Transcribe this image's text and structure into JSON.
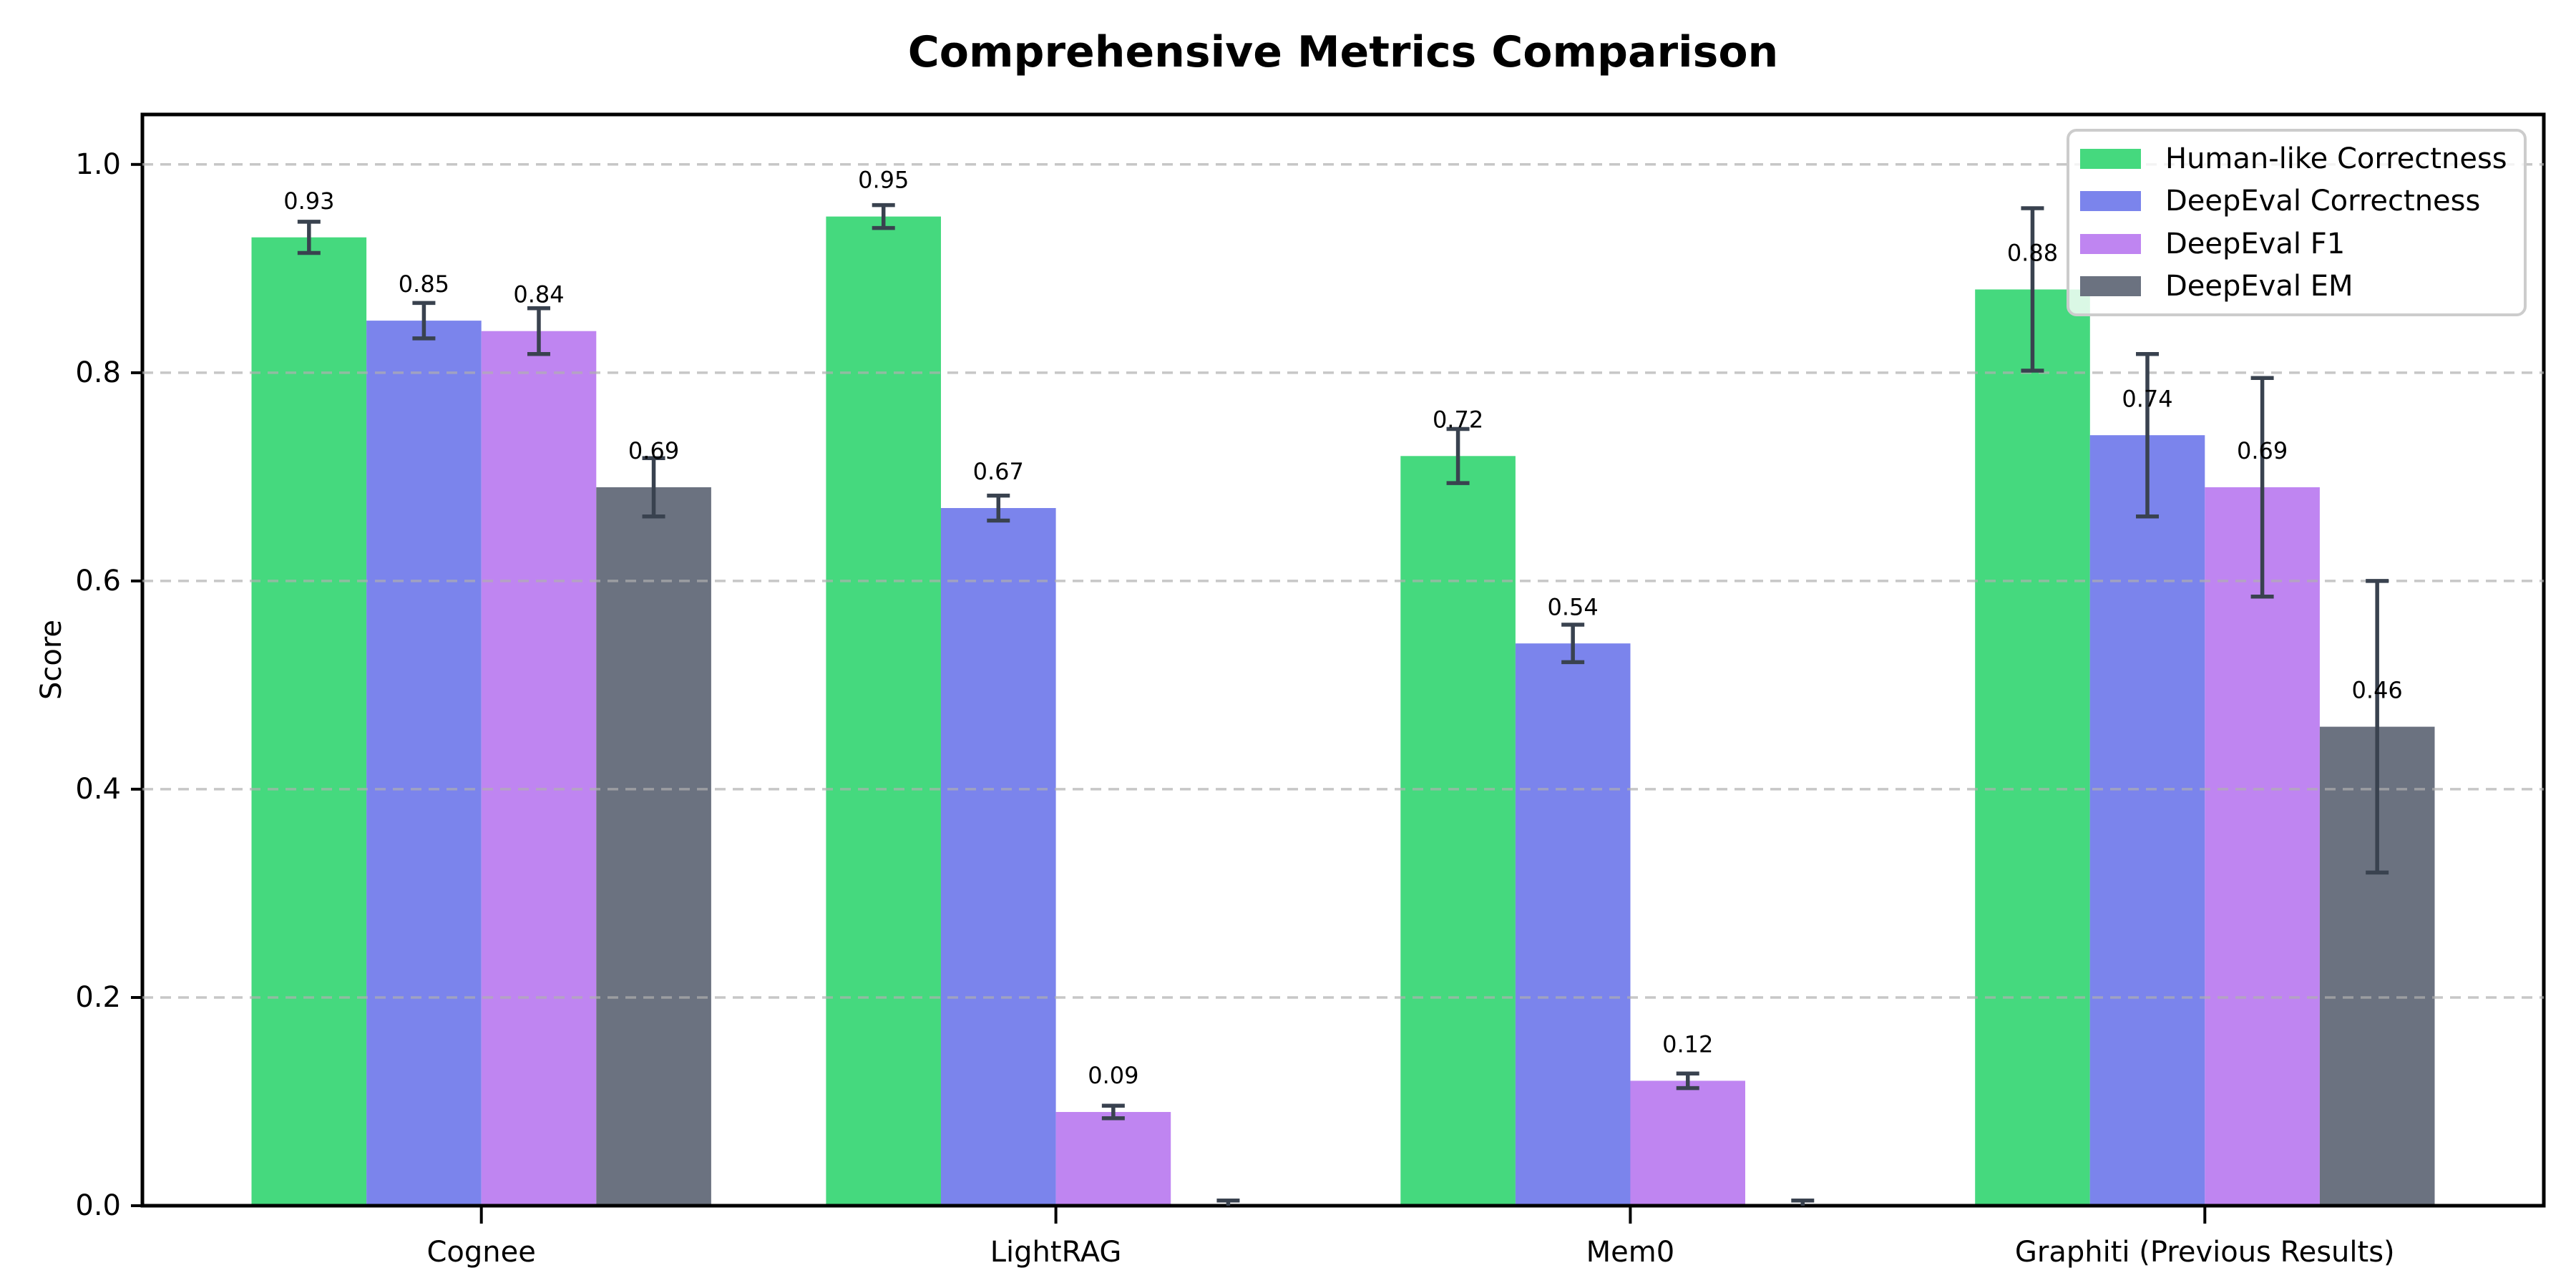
{
  "chart_data": {
    "type": "bar",
    "title": "Comprehensive Metrics Comparison",
    "ylabel": "Score",
    "xlabel": "",
    "categories": [
      "Cognee",
      "LightRAG",
      "Mem0",
      "Graphiti (Previous Results)"
    ],
    "series": [
      {
        "name": "Human-like Correctness",
        "color": "#45d97e",
        "values": [
          0.93,
          0.95,
          0.72,
          0.88
        ],
        "errors": [
          0.015,
          0.011,
          0.026,
          0.078
        ]
      },
      {
        "name": "DeepEval Correctness",
        "color": "#7b84ec",
        "values": [
          0.85,
          0.67,
          0.54,
          0.74
        ],
        "errors": [
          0.017,
          0.012,
          0.018,
          0.078
        ]
      },
      {
        "name": "DeepEval F1",
        "color": "#bf85f1",
        "values": [
          0.84,
          0.09,
          0.12,
          0.69
        ],
        "errors": [
          0.022,
          0.006,
          0.007,
          0.105
        ]
      },
      {
        "name": "DeepEval EM",
        "color": "#6b7280",
        "values": [
          0.69,
          0.0,
          0.0,
          0.46
        ],
        "errors": [
          0.028,
          0.005,
          0.005,
          0.14
        ]
      }
    ],
    "value_labels": [
      [
        "0.93",
        "0.95",
        "0.72",
        "0.88"
      ],
      [
        "0.85",
        "0.67",
        "0.54",
        "0.74"
      ],
      [
        "0.84",
        "0.09",
        "0.12",
        "0.69"
      ],
      [
        "0.69",
        "",
        "",
        "0.46"
      ]
    ],
    "yticks": [
      0.0,
      0.2,
      0.4,
      0.6,
      0.8,
      1.0
    ],
    "ytick_labels": [
      "0.0",
      "0.2",
      "0.4",
      "0.6",
      "0.8",
      "1.0"
    ],
    "ylim": [
      0,
      1.048
    ],
    "grid": "horizontal-dashed",
    "legend_position": "upper right",
    "colors": {
      "error_bar": "#39424f",
      "grid_line": "#b0b0b0",
      "axis": "#000000",
      "text": "#000000",
      "legend_border": "#cccccc",
      "legend_background": "rgba(255,255,255,0.8)"
    }
  }
}
